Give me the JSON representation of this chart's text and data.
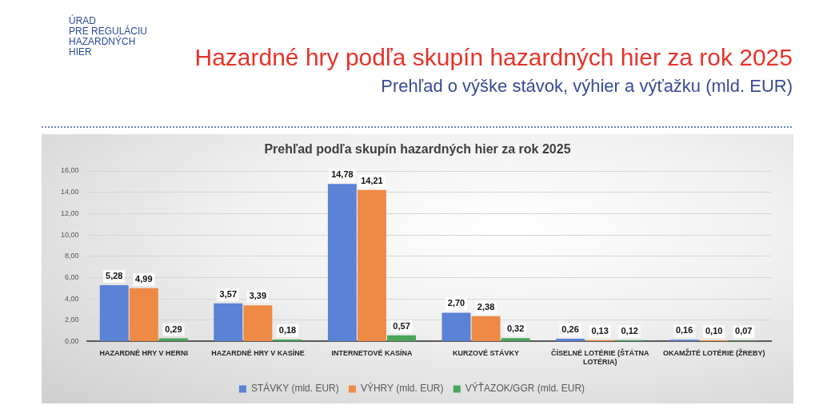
{
  "chart_data": {
    "type": "bar",
    "title": "Hazardné hry podľa skupín hazardných hier za rok 2025",
    "subtitle": "Prehľad o výške stávok, výhier a výťažku (mld. EUR)",
    "annotations": [
      "ÚRAD\nPRE REGULÁCIU\nHAZARDNÝCH\nHIER",
      "Prehľad podľa skupín hazardných hier za rok 2025"
    ],
    "categories": [
      "HAZARDNÉ HRY V HERNI",
      "HAZARDNÉ HRY V KASÍNE",
      "INTERNETOVÉ KASÍNA",
      "KURZOVÉ STÁVKY",
      "ČÍSELNÉ LOTÉRIE (ŠTÁTNA LOTÉRIA)",
      "OKAMŽITÉ LOTÉRIE (ŽREBY)"
    ],
    "series": [
      {
        "name": "STÁVKY (mld. EUR)",
        "color": "#5a82d5",
        "values": [
          5.28,
          3.57,
          14.78,
          2.7,
          0.26,
          0.16
        ],
        "value_labels": [
          "5,28",
          "3,57",
          "14,78",
          "2,70",
          "0,26",
          "0,16"
        ]
      },
      {
        "name": "VÝHRY (mld. EUR)",
        "color": "#ee8a45",
        "values": [
          4.99,
          3.39,
          14.21,
          2.38,
          0.13,
          0.1
        ],
        "value_labels": [
          "4,99",
          "3,39",
          "14,21",
          "2,38",
          "0,13",
          "0,10"
        ]
      },
      {
        "name": "VÝŤAZOK/GGR (mld. EUR)",
        "color": "#4aa55a",
        "values": [
          0.29,
          0.18,
          0.57,
          0.32,
          0.12,
          0.07
        ],
        "value_labels": [
          "0,29",
          "0,18",
          "0,57",
          "0,32",
          "0,12",
          "0,07"
        ]
      }
    ],
    "ylim": [
      0,
      16
    ],
    "yticks": [
      {
        "value": 0,
        "label": "0,00"
      },
      {
        "value": 2,
        "label": "2,00"
      },
      {
        "value": 4,
        "label": "4,00"
      },
      {
        "value": 6,
        "label": "6,00"
      },
      {
        "value": 8,
        "label": "8,00"
      },
      {
        "value": 10,
        "label": "10,00"
      },
      {
        "value": 12,
        "label": "12,00"
      },
      {
        "value": 14,
        "label": "14,00"
      },
      {
        "value": 16,
        "label": "16,00"
      }
    ],
    "grid": "y",
    "legend": "bottom"
  }
}
